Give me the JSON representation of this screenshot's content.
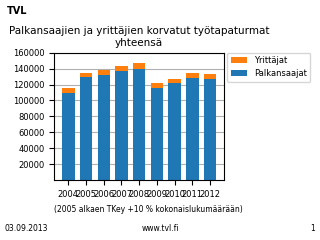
{
  "chart_data": {
    "type": "bar",
    "stacked": true,
    "title": "Palkansaajien ja yrittäjien korvatut työtapaturmat yhteensä",
    "subtitle": "(2005 alkaen TKey +10 % kokonaislukumäärään)",
    "annotations": [
      "TVL",
      "03.09.2013",
      "www.tvl.fi",
      "1"
    ],
    "categories": [
      "2004",
      "2005",
      "2006",
      "2007",
      "2008",
      "2009",
      "2010",
      "2011",
      "2012"
    ],
    "series": [
      {
        "name": "Palkansaajat",
        "values": [
          110000,
          129000,
          132000,
          137000,
          140000,
          116000,
          122000,
          128000,
          127000
        ]
      },
      {
        "name": "Yrittäjat",
        "values": [
          5500,
          6000,
          6500,
          6500,
          7500,
          5500,
          5500,
          7000,
          6500
        ]
      }
    ],
    "ylim": [
      0,
      160000
    ],
    "yticks": [
      20000,
      40000,
      60000,
      80000,
      100000,
      120000,
      140000,
      160000
    ],
    "grid": true,
    "legend": "upper left"
  }
}
